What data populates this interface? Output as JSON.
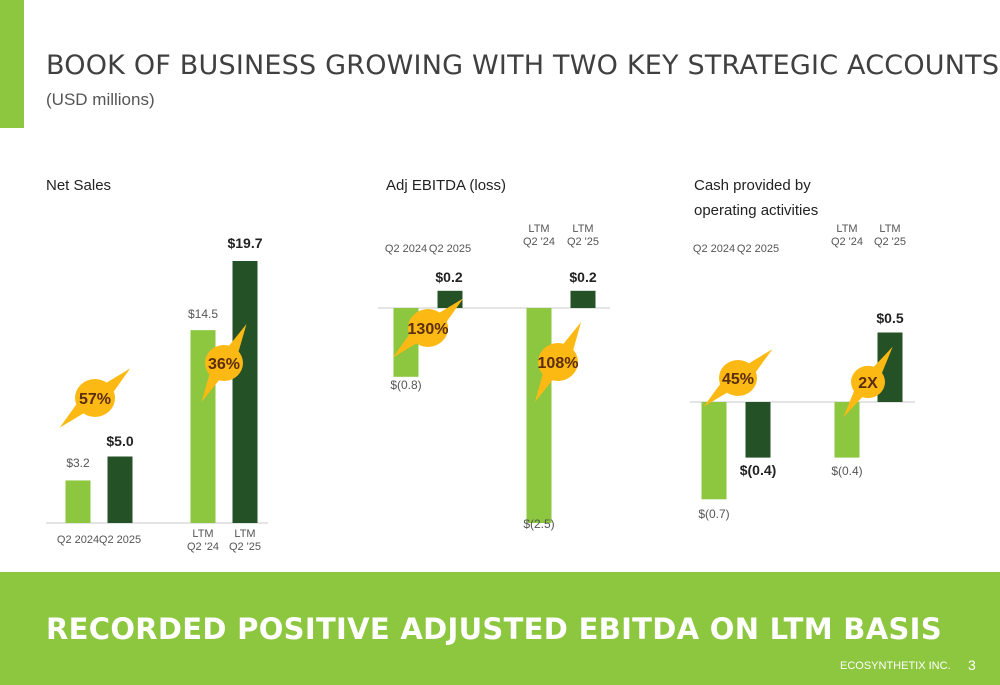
{
  "header": {
    "title": "BOOK OF BUSINESS GROWING WITH TWO KEY STRATEGIC ACCOUNTS",
    "subtitle": "(USD millions)"
  },
  "footer": {
    "headline": "RECORDED POSITIVE ADJUSTED EBITDA ON LTM BASIS",
    "company": "ECOSYNTHETIX INC.",
    "page": "3"
  },
  "colors": {
    "light_green": "#8dc63f",
    "dark_green": "#245126",
    "badge_gold": "#fdb913",
    "title_gray": "#404040"
  },
  "chart_data": [
    {
      "type": "bar",
      "title": "Net Sales",
      "categories": [
        "Q2 2024",
        "Q2 2025",
        "LTM Q2 '24",
        "LTM Q2 '25"
      ],
      "values": [
        3.2,
        5.0,
        14.5,
        19.7
      ],
      "labels": [
        "$3.2",
        "$5.0",
        "$14.5",
        "$19.7"
      ],
      "growth_badges": [
        "57%",
        "36%"
      ]
    },
    {
      "type": "bar",
      "title": "Adj EBITDA (loss)",
      "categories": [
        "Q2 2024",
        "Q2 2025",
        "LTM Q2 '24",
        "LTM Q2 '25"
      ],
      "values": [
        -0.8,
        0.2,
        -2.5,
        0.2
      ],
      "labels": [
        "$(0.8)",
        "$0.2",
        "$(2.5)",
        "$0.2"
      ],
      "growth_badges": [
        "130%",
        "108%"
      ]
    },
    {
      "type": "bar",
      "title": "Cash provided by operating activities",
      "categories": [
        "Q2 2024",
        "Q2 2025",
        "LTM Q2 '24",
        "LTM Q2 '25"
      ],
      "values": [
        -0.7,
        -0.4,
        -0.4,
        0.5
      ],
      "labels": [
        "$(0.7)",
        "$(0.4)",
        "$(0.4)",
        "$0.5"
      ],
      "growth_badges": [
        "45%",
        "2X"
      ]
    }
  ]
}
